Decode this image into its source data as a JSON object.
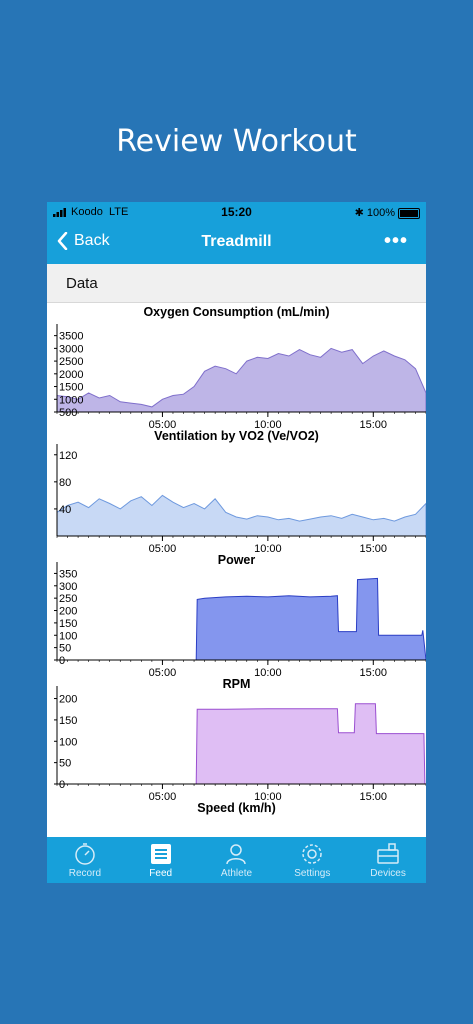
{
  "headline": "Review Workout",
  "status_bar": {
    "carrier": "Koodo",
    "network": "LTE",
    "time": "15:20",
    "battery": "100%"
  },
  "nav": {
    "back_label": "Back",
    "title": "Treadmill",
    "more_label": "•••"
  },
  "section": {
    "title": "Data"
  },
  "colors": {
    "accent": "#17A0DA",
    "background": "#2775B6",
    "oxygen": "#A89CDF",
    "ventilation": "#B5CCF2",
    "power": "#5B73E8",
    "rpm": "#D4A8F0"
  },
  "tabs": [
    {
      "label": "Record",
      "icon": "stopwatch-icon",
      "active": false
    },
    {
      "label": "Feed",
      "icon": "list-icon",
      "active": true
    },
    {
      "label": "Athlete",
      "icon": "person-icon",
      "active": false
    },
    {
      "label": "Settings",
      "icon": "gear-icon",
      "active": false
    },
    {
      "label": "Devices",
      "icon": "toolbox-icon",
      "active": false
    }
  ],
  "chart_data": [
    {
      "type": "area",
      "title": "Oxygen Consumption (mL/min)",
      "xlim": [
        0,
        17.5
      ],
      "ylim": [
        500,
        3800
      ],
      "yticks": [
        500,
        1000,
        1500,
        2000,
        2500,
        3000,
        3500
      ],
      "ytick_labels": [
        "500",
        "1000",
        "1500",
        "2000",
        "2500",
        "3000",
        "3500"
      ],
      "xticks": [
        5,
        10,
        15
      ],
      "xtick_labels": [
        "05:00",
        "10:00",
        "15:00"
      ],
      "x": [
        0,
        0.5,
        1,
        1.5,
        2,
        2.5,
        3,
        3.5,
        4,
        4.5,
        5,
        5.5,
        6,
        6.5,
        7,
        7.5,
        8,
        8.5,
        9,
        9.5,
        10,
        10.5,
        11,
        11.5,
        12,
        12.5,
        13,
        13.5,
        14,
        14.5,
        15,
        15.5,
        16,
        16.5,
        17,
        17.5
      ],
      "y": [
        1150,
        1100,
        1000,
        1250,
        1050,
        1150,
        900,
        850,
        800,
        700,
        1000,
        1150,
        1200,
        1500,
        2100,
        2300,
        2200,
        2000,
        2500,
        2650,
        2600,
        2800,
        2700,
        2950,
        2750,
        2650,
        3000,
        2850,
        2950,
        2400,
        2700,
        2900,
        2700,
        2550,
        2200,
        1250
      ]
    },
    {
      "type": "area",
      "title": "Ventilation by VO2  (Ve/VO2)",
      "xlim": [
        0,
        17.5
      ],
      "ylim": [
        0,
        130
      ],
      "yticks": [
        40,
        80,
        120
      ],
      "ytick_labels": [
        "40",
        "80",
        "120"
      ],
      "xticks": [
        5,
        10,
        15
      ],
      "xtick_labels": [
        "05:00",
        "10:00",
        "15:00"
      ],
      "x": [
        0,
        0.5,
        1,
        1.5,
        2,
        2.5,
        3,
        3.5,
        4,
        4.5,
        5,
        5.5,
        6,
        6.5,
        7,
        7.5,
        8,
        8.5,
        9,
        9.5,
        10,
        10.5,
        11,
        11.5,
        12,
        12.5,
        13,
        13.5,
        14,
        14.5,
        15,
        15.5,
        16,
        16.5,
        17,
        17.5
      ],
      "y": [
        35,
        45,
        50,
        42,
        55,
        48,
        40,
        52,
        58,
        45,
        60,
        50,
        42,
        48,
        40,
        55,
        35,
        28,
        25,
        30,
        28,
        24,
        26,
        22,
        25,
        28,
        30,
        26,
        32,
        28,
        24,
        26,
        22,
        28,
        32,
        48
      ]
    },
    {
      "type": "area",
      "title": "Power",
      "xlim": [
        0,
        17.5
      ],
      "ylim": [
        0,
        380
      ],
      "yticks": [
        0,
        50,
        100,
        150,
        200,
        250,
        300,
        350
      ],
      "ytick_labels": [
        "0",
        "50",
        "100",
        "150",
        "200",
        "250",
        "300",
        "350"
      ],
      "xticks": [
        5,
        10,
        15
      ],
      "xtick_labels": [
        "05:00",
        "10:00",
        "15:00"
      ],
      "x": [
        0,
        6.6,
        6.65,
        7,
        8,
        9,
        10,
        11,
        12,
        13,
        13.3,
        13.35,
        14.2,
        14.25,
        15.2,
        15.25,
        17.3,
        17.35,
        17.5
      ],
      "y": [
        0,
        0,
        245,
        250,
        255,
        258,
        255,
        260,
        255,
        258,
        260,
        115,
        115,
        325,
        330,
        100,
        100,
        120,
        0
      ]
    },
    {
      "type": "area",
      "title": "RPM",
      "xlim": [
        0,
        17.5
      ],
      "ylim": [
        0,
        220
      ],
      "yticks": [
        0,
        50,
        100,
        150,
        200
      ],
      "ytick_labels": [
        "0",
        "50",
        "100",
        "150",
        "200"
      ],
      "xticks": [
        5,
        10,
        15
      ],
      "xtick_labels": [
        "05:00",
        "10:00",
        "15:00"
      ],
      "x": [
        0,
        6.6,
        6.65,
        8,
        10,
        12,
        13.3,
        13.35,
        14.1,
        14.15,
        15.1,
        15.15,
        17.4,
        17.45,
        17.5
      ],
      "y": [
        0,
        0,
        175,
        175,
        176,
        176,
        176,
        120,
        120,
        188,
        188,
        118,
        118,
        0,
        0
      ]
    },
    {
      "type": "area",
      "title": "Speed (km/h)"
    }
  ]
}
